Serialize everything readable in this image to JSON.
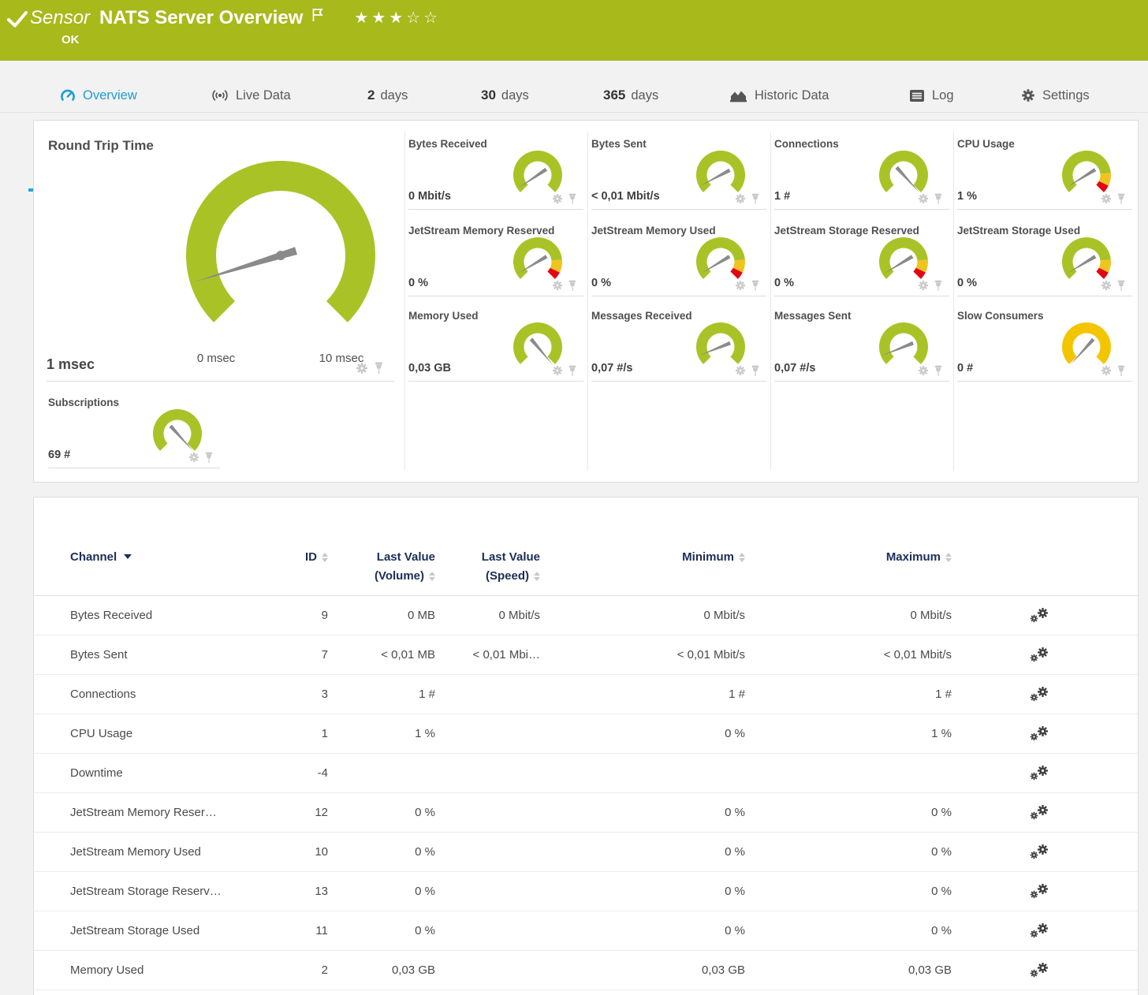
{
  "header": {
    "kind_label": "Sensor",
    "title": "NATS Server Overview",
    "status": "OK",
    "rating": {
      "filled": 3,
      "total": 5
    }
  },
  "tabs": [
    {
      "id": "overview",
      "label": "Overview",
      "active": true
    },
    {
      "id": "live-data",
      "label": "Live Data"
    },
    {
      "id": "2-days",
      "prefix": "2",
      "label": "days"
    },
    {
      "id": "30-days",
      "prefix": "30",
      "label": "days"
    },
    {
      "id": "365-days",
      "prefix": "365",
      "label": "days"
    },
    {
      "id": "historic-data",
      "label": "Historic Data"
    },
    {
      "id": "log",
      "label": "Log"
    },
    {
      "id": "settings",
      "label": "Settings"
    }
  ],
  "gauges": {
    "primary": {
      "title": "Round Trip Time",
      "value": "1 msec",
      "scale_min": "0 msec",
      "scale_max": "10 msec",
      "needle_deg": -107,
      "segments": [
        {
          "color": "#a9c327",
          "frac": 1
        }
      ]
    },
    "tiles": [
      {
        "title": "Bytes Received",
        "value": "0 Mbit/s",
        "needle_deg": -124,
        "segments": [
          {
            "color": "#a9c327",
            "frac": 1
          }
        ]
      },
      {
        "title": "Bytes Sent",
        "value": "< 0,01 Mbit/s",
        "needle_deg": -118,
        "segments": [
          {
            "color": "#a9c327",
            "frac": 1
          }
        ]
      },
      {
        "title": "Connections",
        "value": "1 #",
        "needle_deg": 138,
        "segments": [
          {
            "color": "#a9c327",
            "frac": 1
          }
        ]
      },
      {
        "title": "CPU Usage",
        "value": "1 %",
        "needle_deg": -122,
        "segments": [
          {
            "color": "#a9c327",
            "frac": 0.815
          },
          {
            "color": "#f0c41e",
            "frac": 0.115
          },
          {
            "color": "#e30613",
            "frac": 0.07
          }
        ]
      },
      {
        "title": "JetStream Memory Reserved",
        "value": "0 %",
        "needle_deg": -121,
        "segments": [
          {
            "color": "#a9c327",
            "frac": 0.815
          },
          {
            "color": "#f0c41e",
            "frac": 0.115
          },
          {
            "color": "#e30613",
            "frac": 0.07
          }
        ]
      },
      {
        "title": "JetStream Memory Used",
        "value": "0 %",
        "needle_deg": -121,
        "segments": [
          {
            "color": "#a9c327",
            "frac": 0.815
          },
          {
            "color": "#f0c41e",
            "frac": 0.115
          },
          {
            "color": "#e30613",
            "frac": 0.07
          }
        ]
      },
      {
        "title": "JetStream Storage Reserved",
        "value": "0 %",
        "needle_deg": -121,
        "segments": [
          {
            "color": "#a9c327",
            "frac": 0.815
          },
          {
            "color": "#f0c41e",
            "frac": 0.115
          },
          {
            "color": "#e30613",
            "frac": 0.07
          }
        ]
      },
      {
        "title": "JetStream Storage Used",
        "value": "0 %",
        "needle_deg": -121,
        "segments": [
          {
            "color": "#a9c327",
            "frac": 0.815
          },
          {
            "color": "#f0c41e",
            "frac": 0.115
          },
          {
            "color": "#e30613",
            "frac": 0.07
          }
        ]
      },
      {
        "title": "Memory Used",
        "value": "0,03 GB",
        "needle_deg": 140,
        "segments": [
          {
            "color": "#a9c327",
            "frac": 1
          }
        ]
      },
      {
        "title": "Messages Received",
        "value": "0,07 #/s",
        "needle_deg": -112,
        "segments": [
          {
            "color": "#a9c327",
            "frac": 1
          }
        ]
      },
      {
        "title": "Messages Sent",
        "value": "0,07 #/s",
        "needle_deg": -112,
        "segments": [
          {
            "color": "#a9c327",
            "frac": 1
          }
        ]
      },
      {
        "title": "Slow Consumers",
        "value": "0 #",
        "needle_deg": -138,
        "segments": [
          {
            "color": "#f3c500",
            "frac": 1
          }
        ]
      },
      {
        "title": "Subscriptions",
        "value": "69 #",
        "needle_deg": 138,
        "segments": [
          {
            "color": "#a9c327",
            "frac": 1
          }
        ]
      }
    ]
  },
  "table": {
    "headers": {
      "channel": "Channel",
      "id": "ID",
      "volume_l1": "Last Value",
      "volume_l2": "(Volume)",
      "speed_l1": "Last Value",
      "speed_l2": "(Speed)",
      "min": "Minimum",
      "max": "Maximum"
    },
    "rows": [
      {
        "channel": "Bytes Received",
        "id": "9",
        "volume": "0 MB",
        "speed": "0 Mbit/s",
        "min": "0 Mbit/s",
        "max": "0 Mbit/s"
      },
      {
        "channel": "Bytes Sent",
        "id": "7",
        "volume": "< 0,01 MB",
        "speed": "< 0,01 Mbi…",
        "min": "< 0,01 Mbit/s",
        "max": "< 0,01 Mbit/s"
      },
      {
        "channel": "Connections",
        "id": "3",
        "volume": "1 #",
        "speed": "",
        "min": "1 #",
        "max": "1 #"
      },
      {
        "channel": "CPU Usage",
        "id": "1",
        "volume": "1 %",
        "speed": "",
        "min": "0 %",
        "max": "1 %"
      },
      {
        "channel": "Downtime",
        "id": "-4",
        "volume": "",
        "speed": "",
        "min": "",
        "max": ""
      },
      {
        "channel": "JetStream Memory Reser…",
        "id": "12",
        "volume": "0 %",
        "speed": "",
        "min": "0 %",
        "max": "0 %"
      },
      {
        "channel": "JetStream Memory Used",
        "id": "10",
        "volume": "0 %",
        "speed": "",
        "min": "0 %",
        "max": "0 %"
      },
      {
        "channel": "JetStream Storage Reserv…",
        "id": "13",
        "volume": "0 %",
        "speed": "",
        "min": "0 %",
        "max": "0 %"
      },
      {
        "channel": "JetStream Storage Used",
        "id": "11",
        "volume": "0 %",
        "speed": "",
        "min": "0 %",
        "max": "0 %"
      },
      {
        "channel": "Memory Used",
        "id": "2",
        "volume": "0,03 GB",
        "speed": "",
        "min": "0,03 GB",
        "max": "0,03 GB"
      }
    ]
  },
  "colors": {
    "status_green": "#a8b91c",
    "gauge_green": "#a9c327",
    "gauge_yellow": "#f0c41e",
    "gauge_red": "#e30613",
    "gauge_amber": "#f3c500",
    "accent_blue": "#2aa3dc",
    "needle_gray": "#8a8a8a"
  }
}
